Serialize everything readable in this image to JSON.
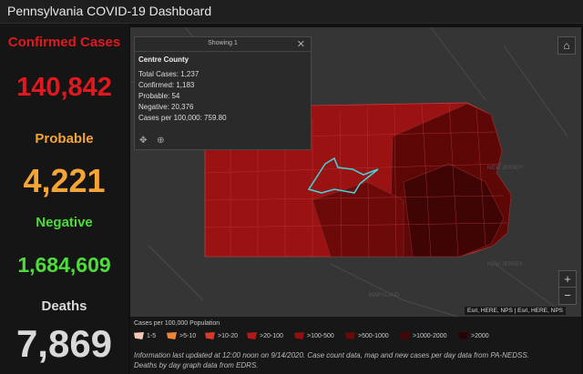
{
  "header": {
    "title": "Pennsylvania COVID-19 Dashboard"
  },
  "stats": {
    "confirmed": {
      "label": "Confirmed Cases",
      "value": "140,842"
    },
    "probable": {
      "label": "Probable",
      "value": "4,221"
    },
    "negative": {
      "label": "Negative",
      "value": "1,684,609"
    },
    "deaths": {
      "label": "Deaths",
      "value": "7,869"
    }
  },
  "colors": {
    "confirmed": "#e0191e",
    "probable": "#f5a535",
    "negative": "#4ddc3c",
    "deaths": "#d9d9d9",
    "highlight": "#3ed9e0"
  },
  "popup": {
    "showing": "Showing 1",
    "county": "Centre County",
    "lines": [
      "Total Cases: 1,237",
      "Confirmed: 1,183",
      "Probable: 54",
      "Negative: 20,376",
      "Cases per 100,000: 759.80"
    ]
  },
  "map": {
    "labels": {
      "nj1": "NEW JERSEY",
      "nj2": "NEW JERSEY",
      "md": "MARYLAND"
    },
    "attribution": "Esri, HERE, NPS | Esri, HERE, NPS",
    "icons": [
      "home-icon",
      "zoom-in-icon",
      "zoom-out-icon",
      "close-icon",
      "pan-icon",
      "zoom-to-icon"
    ]
  },
  "legend": {
    "title": "Cases per 100,000 Population",
    "items": [
      {
        "label": "1-5",
        "color": "#f5c9b8"
      },
      {
        "label": ">5-10",
        "color": "#e8873a"
      },
      {
        "label": ">10-20",
        "color": "#d83a2a"
      },
      {
        "label": ">20-100",
        "color": "#b21a1a"
      },
      {
        "label": ">100-500",
        "color": "#8e1010"
      },
      {
        "label": ">500-1000",
        "color": "#6a0909"
      },
      {
        "label": ">1000-2000",
        "color": "#470505"
      },
      {
        "label": ">2000",
        "color": "#2a0202"
      }
    ]
  },
  "info": {
    "line1": "Information last updated at 12:00 noon on 9/14/2020. Case count data, map and new cases per day data from PA-NEDSS.",
    "line2": "Deaths by day graph data from EDRS."
  }
}
